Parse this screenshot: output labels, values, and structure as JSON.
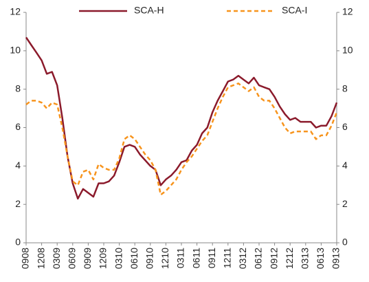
{
  "chart_data": {
    "type": "line",
    "categories": [
      "0908",
      null,
      null,
      "1208",
      null,
      null,
      "0309",
      null,
      null,
      "0609",
      null,
      null,
      "0909",
      null,
      null,
      "1209",
      null,
      null,
      "0310",
      null,
      null,
      "0610",
      null,
      null,
      "0910",
      null,
      null,
      "1210",
      null,
      null,
      "0311",
      null,
      null,
      "0611",
      null,
      null,
      "0911",
      null,
      null,
      "1211",
      null,
      null,
      "0312",
      null,
      null,
      "0612",
      null,
      null,
      "0912",
      null,
      null,
      "1212",
      null,
      null,
      "0313",
      null,
      null,
      "0613",
      null,
      null,
      "0913"
    ],
    "series": [
      {
        "name": "SCA-H",
        "color": "#8b1a2b",
        "dashed": false,
        "values": [
          10.7,
          10.3,
          9.9,
          9.5,
          8.8,
          8.9,
          8.2,
          6.5,
          4.5,
          3.1,
          2.3,
          2.8,
          2.6,
          2.4,
          3.1,
          3.1,
          3.2,
          3.5,
          4.2,
          5.0,
          5.1,
          5.0,
          4.6,
          4.3,
          4.0,
          3.8,
          3.0,
          3.3,
          3.5,
          3.8,
          4.2,
          4.3,
          4.8,
          5.1,
          5.7,
          6.0,
          6.8,
          7.4,
          7.9,
          8.4,
          8.5,
          8.7,
          8.5,
          8.3,
          8.6,
          8.2,
          8.1,
          8.0,
          7.6,
          7.1,
          6.7,
          6.4,
          6.5,
          6.3,
          6.3,
          6.3,
          6.0,
          6.1,
          6.1,
          6.6,
          7.3
        ]
      },
      {
        "name": "SCA-I",
        "color": "#f7941d",
        "dashed": true,
        "values": [
          7.2,
          7.4,
          7.4,
          7.3,
          7.0,
          7.3,
          7.2,
          6.0,
          4.5,
          3.2,
          3.0,
          3.7,
          3.8,
          3.3,
          4.1,
          3.9,
          3.8,
          3.8,
          4.4,
          5.4,
          5.6,
          5.4,
          5.0,
          4.6,
          4.3,
          3.8,
          2.5,
          2.7,
          3.0,
          3.3,
          3.8,
          4.2,
          4.5,
          4.9,
          5.3,
          5.6,
          6.3,
          7.0,
          7.6,
          8.1,
          8.2,
          8.3,
          8.1,
          7.9,
          8.1,
          7.6,
          7.4,
          7.4,
          7.0,
          6.5,
          6.0,
          5.7,
          5.8,
          5.8,
          5.8,
          5.8,
          5.4,
          5.6,
          5.6,
          6.1,
          6.8
        ]
      }
    ],
    "ylim": [
      0,
      12
    ],
    "yticks": [
      0,
      2,
      4,
      6,
      8,
      10,
      12
    ],
    "y2lim": [
      0,
      12
    ],
    "y2ticks": [
      0,
      2,
      4,
      6,
      8,
      10,
      12
    ],
    "grid": false,
    "legend": "top"
  }
}
